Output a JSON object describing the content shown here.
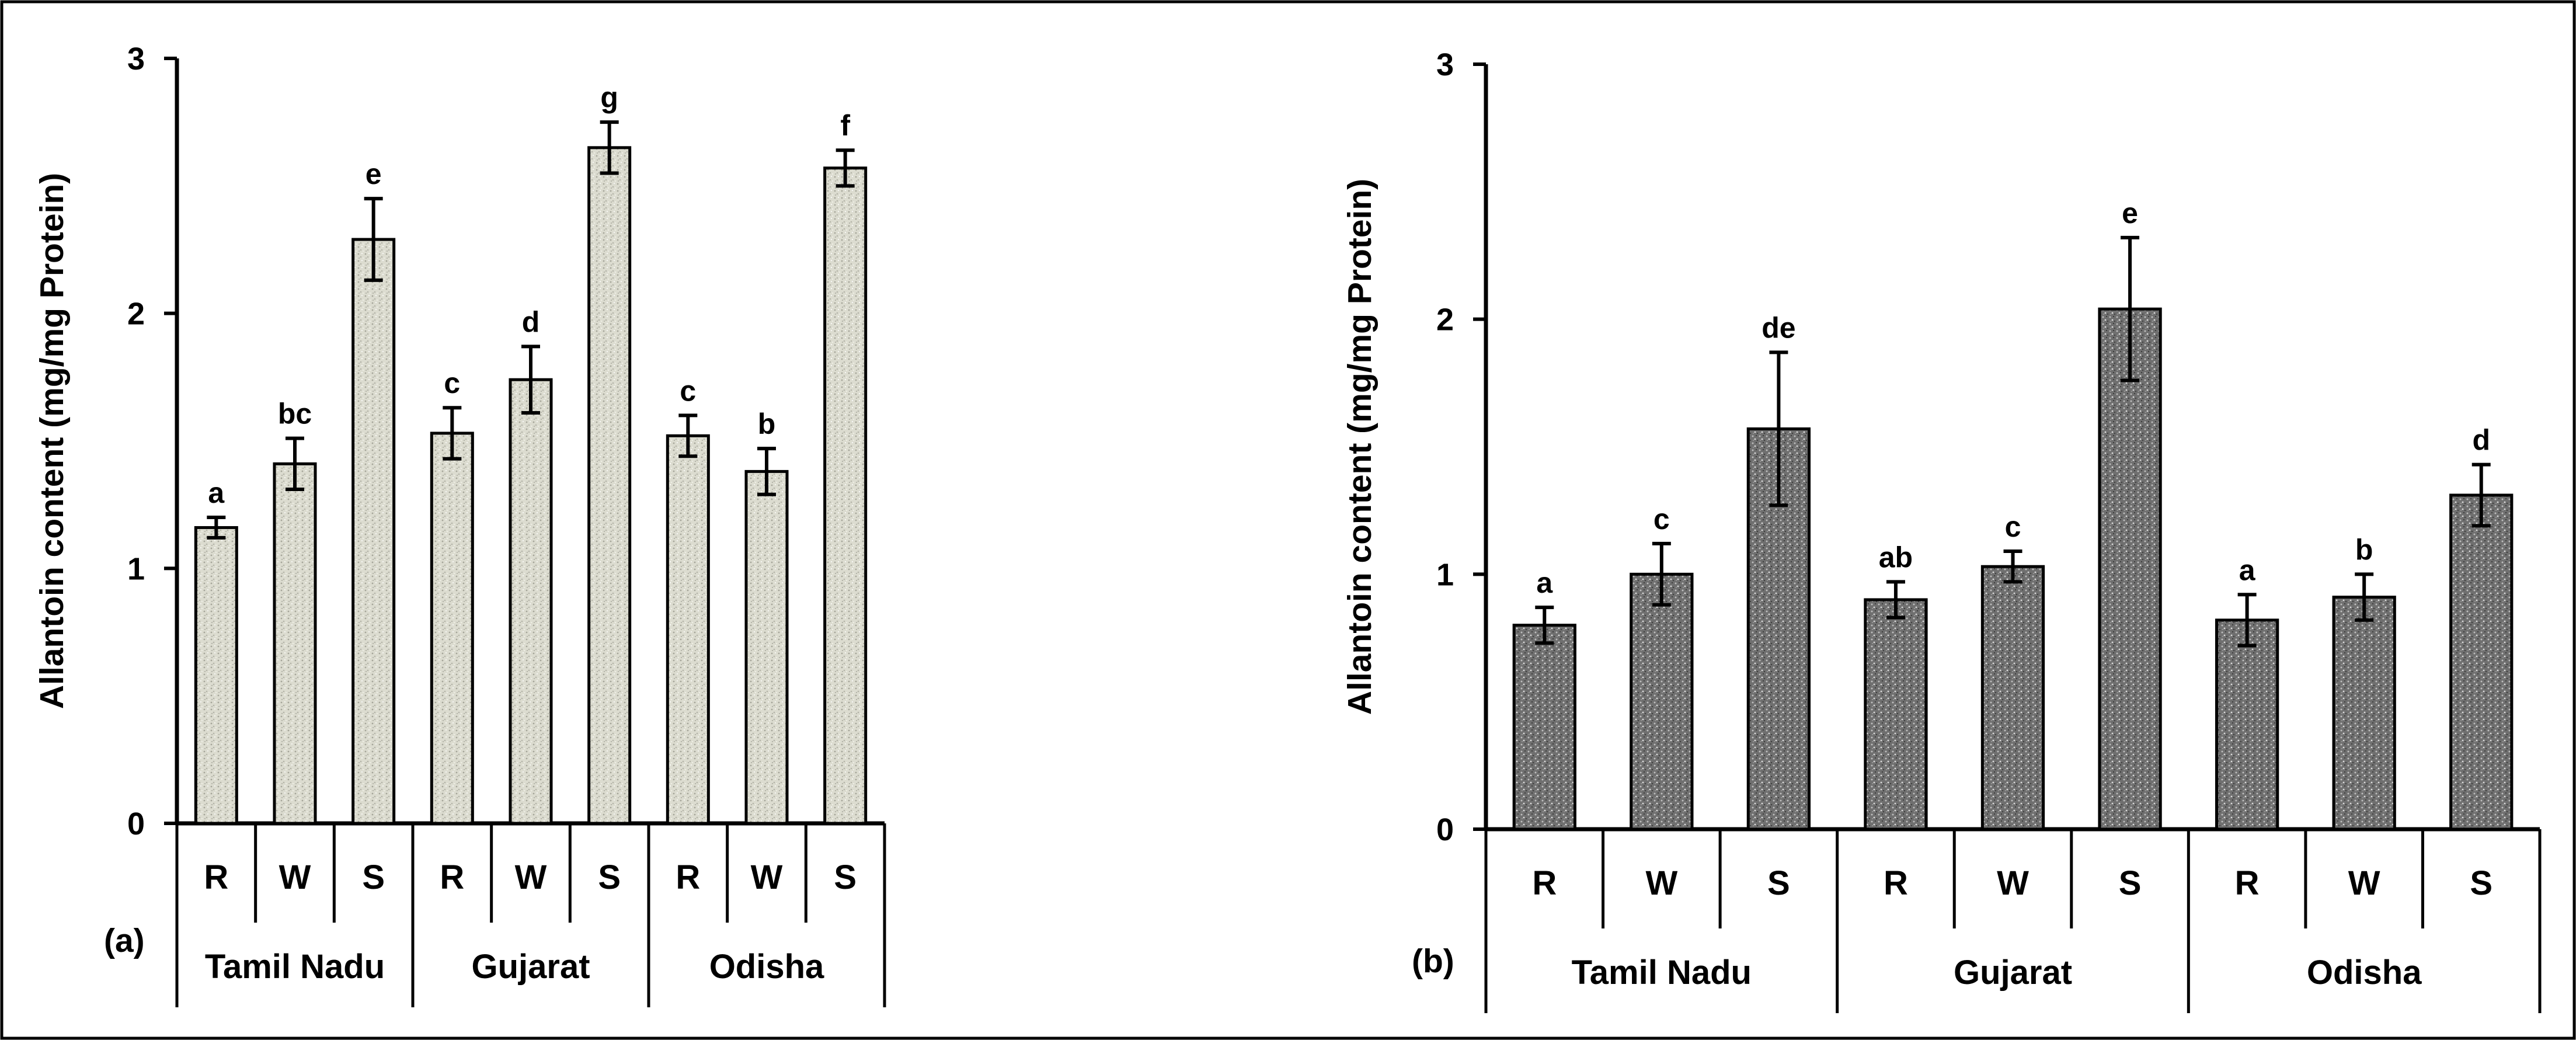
{
  "chart_data": [
    {
      "type": "bar",
      "panel_label": "(a)",
      "ylabel": "Allantoin content  (mg/mg Protein)",
      "ylim": [
        0,
        3
      ],
      "yticks": [
        "0",
        "1",
        "2",
        "3"
      ],
      "groups": [
        {
          "name": "Tamil Nadu",
          "categories": [
            "R",
            "W",
            "S"
          ]
        },
        {
          "name": "Gujarat",
          "categories": [
            "R",
            "W",
            "S"
          ]
        },
        {
          "name": "Odisha",
          "categories": [
            "R",
            "W",
            "S"
          ]
        }
      ],
      "values": [
        1.16,
        1.41,
        2.29,
        1.53,
        1.74,
        2.65,
        1.52,
        1.38,
        2.57
      ],
      "errors": [
        0.04,
        0.1,
        0.16,
        0.1,
        0.13,
        0.1,
        0.08,
        0.09,
        0.07
      ],
      "significance_labels": [
        "a",
        "bc",
        "e",
        "c",
        "d",
        "g",
        "c",
        "b",
        "f"
      ],
      "bar_color": "#dcdcd0"
    },
    {
      "type": "bar",
      "panel_label": "(b)",
      "ylabel": "Allantoin content  (mg/mg Protein)",
      "ylim": [
        0,
        3
      ],
      "yticks": [
        "0",
        "1",
        "2",
        "3"
      ],
      "groups": [
        {
          "name": "Tamil Nadu",
          "categories": [
            "R",
            "W",
            "S"
          ]
        },
        {
          "name": "Gujarat",
          "categories": [
            "R",
            "W",
            "S"
          ]
        },
        {
          "name": "Odisha",
          "categories": [
            "R",
            "W",
            "S"
          ]
        }
      ],
      "values": [
        0.8,
        1.0,
        1.57,
        0.9,
        1.03,
        2.04,
        0.82,
        0.91,
        1.31
      ],
      "errors": [
        0.07,
        0.12,
        0.3,
        0.07,
        0.06,
        0.28,
        0.1,
        0.09,
        0.12
      ],
      "significance_labels": [
        "a",
        "c",
        "de",
        "ab",
        "c",
        "e",
        "a",
        "b",
        "d"
      ],
      "bar_color": "#6f6f6f"
    }
  ]
}
